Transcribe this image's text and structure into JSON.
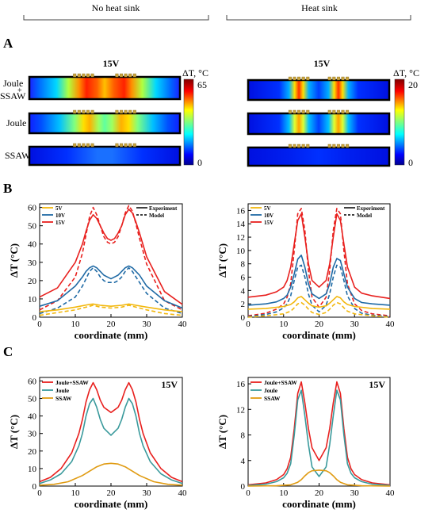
{
  "headers": {
    "left": "No heat sink",
    "right": "Heat sink"
  },
  "panel_labels": {
    "a": "A",
    "b": "B",
    "c": "C"
  },
  "heatmaps": {
    "left": {
      "title": "15V",
      "colorbar_label": "ΔT, °C",
      "max": "65",
      "min": "0"
    },
    "right": {
      "title": "15V",
      "colorbar_label": "ΔT, °C",
      "max": "20",
      "min": "0"
    },
    "row_labels": [
      "Joule\n+\nSSAW",
      "Joule",
      "SSAW"
    ]
  },
  "colors": {
    "v5": "#f2b70d",
    "v10": "#1f6aa5",
    "v15": "#e8201e",
    "joule_ssaw": "#e8201e",
    "joule": "#3a9a9c",
    "ssaw": "#e09b12"
  },
  "chart_data": [
    {
      "id": "b-left",
      "type": "line",
      "xlabel": "coordinate (mm)",
      "ylabel": "ΔT (°C)",
      "xlim": [
        0,
        40
      ],
      "ylim": [
        0,
        62
      ],
      "xticks": [
        0,
        10,
        20,
        30,
        40
      ],
      "yticks": [
        0,
        10,
        20,
        30,
        40,
        50,
        60
      ],
      "legend": [
        "5V",
        "10V",
        "15V"
      ],
      "style_legend": [
        "Experiment",
        "Model"
      ],
      "series": [
        {
          "name": "15V",
          "style": "solid",
          "color": "#e8201e",
          "x": [
            0,
            5,
            10,
            12,
            13,
            14,
            15,
            16,
            17,
            18,
            19,
            20,
            21,
            22,
            23,
            24,
            25,
            26,
            27,
            28,
            30,
            35,
            40
          ],
          "y": [
            11,
            16,
            30,
            40,
            47,
            53,
            56,
            54,
            50,
            46,
            43,
            42,
            43,
            46,
            50,
            56,
            59,
            57,
            52,
            46,
            33,
            14,
            7
          ]
        },
        {
          "name": "15V",
          "style": "dashed",
          "color": "#e8201e",
          "x": [
            0,
            5,
            10,
            12,
            13,
            14,
            15,
            16,
            17,
            18,
            19,
            20,
            21,
            22,
            23,
            24,
            25,
            26,
            27,
            28,
            30,
            35,
            40
          ],
          "y": [
            4,
            9,
            22,
            35,
            45,
            55,
            60,
            56,
            50,
            44,
            41,
            40,
            41,
            44,
            50,
            57,
            61,
            58,
            51,
            43,
            29,
            9,
            4
          ]
        },
        {
          "name": "10V",
          "style": "solid",
          "color": "#1f6aa5",
          "x": [
            0,
            5,
            10,
            12,
            13,
            14,
            15,
            16,
            17,
            18,
            19,
            20,
            21,
            22,
            23,
            24,
            25,
            26,
            27,
            28,
            30,
            35,
            40
          ],
          "y": [
            6,
            9,
            17,
            22,
            25,
            27,
            28,
            27,
            25,
            23,
            22,
            21,
            22,
            23,
            25,
            27,
            28,
            27,
            25,
            23,
            17,
            9,
            5
          ]
        },
        {
          "name": "10V",
          "style": "dashed",
          "color": "#1f6aa5",
          "x": [
            0,
            5,
            10,
            12,
            13,
            14,
            15,
            16,
            17,
            18,
            19,
            20,
            21,
            22,
            23,
            24,
            25,
            26,
            27,
            28,
            30,
            35,
            40
          ],
          "y": [
            2,
            5,
            11,
            17,
            21,
            25,
            27,
            25,
            22,
            20,
            19,
            19,
            19,
            20,
            22,
            25,
            27,
            25,
            22,
            19,
            13,
            5,
            2
          ]
        },
        {
          "name": "5V",
          "style": "solid",
          "color": "#f2b70d",
          "x": [
            0,
            5,
            10,
            14,
            15,
            17,
            20,
            23,
            25,
            27,
            30,
            35,
            40
          ],
          "y": [
            3,
            4,
            5.5,
            7,
            7.2,
            6.5,
            6,
            6.5,
            7.2,
            6.5,
            5.5,
            4,
            3
          ]
        },
        {
          "name": "5V",
          "style": "dashed",
          "color": "#f2b70d",
          "x": [
            0,
            5,
            10,
            14,
            15,
            17,
            20,
            23,
            25,
            27,
            30,
            35,
            40
          ],
          "y": [
            1,
            2.5,
            4,
            6,
            6.5,
            5.5,
            5,
            5.5,
            6.5,
            5.5,
            4,
            2,
            1
          ]
        }
      ]
    },
    {
      "id": "b-right",
      "type": "line",
      "xlabel": "coordinate (mm)",
      "ylabel": "ΔT (°C)",
      "xlim": [
        0,
        40
      ],
      "ylim": [
        0,
        17
      ],
      "xticks": [
        0,
        10,
        20,
        30,
        40
      ],
      "yticks": [
        0,
        2,
        4,
        6,
        8,
        10,
        12,
        14,
        16
      ],
      "legend": [
        "5V",
        "10V",
        "15V"
      ],
      "style_legend": [
        "Experiment",
        "Model"
      ],
      "series": [
        {
          "name": "15V",
          "style": "solid",
          "color": "#e8201e",
          "x": [
            0,
            5,
            8,
            10,
            11,
            12,
            13,
            14,
            15,
            16,
            17,
            18,
            20,
            22,
            23,
            24,
            25,
            26,
            27,
            28,
            30,
            32,
            35,
            40
          ],
          "y": [
            3,
            3.3,
            3.8,
            4.5,
            5.5,
            7.5,
            11,
            14.5,
            15.5,
            12,
            8,
            5.5,
            4.5,
            5.5,
            8,
            12,
            15.5,
            14.5,
            11,
            7.5,
            4.5,
            3.6,
            3.2,
            2.8
          ]
        },
        {
          "name": "15V",
          "style": "dashed",
          "color": "#e8201e",
          "x": [
            0,
            5,
            8,
            10,
            11,
            12,
            13,
            14,
            15,
            16,
            17,
            18,
            20,
            22,
            23,
            24,
            25,
            26,
            27,
            28,
            30,
            32,
            35,
            40
          ],
          "y": [
            0.2,
            0.6,
            1.2,
            2,
            3,
            5,
            10,
            15.5,
            16.3,
            13,
            7,
            3,
            1.5,
            3,
            7,
            13,
            16.3,
            15.5,
            10,
            5,
            2,
            1,
            0.5,
            0.2
          ]
        },
        {
          "name": "10V",
          "style": "solid",
          "color": "#1f6aa5",
          "x": [
            0,
            5,
            8,
            10,
            11,
            12,
            13,
            14,
            15,
            16,
            17,
            18,
            20,
            22,
            23,
            24,
            25,
            26,
            27,
            28,
            30,
            32,
            35,
            40
          ],
          "y": [
            1.8,
            2,
            2.3,
            2.8,
            3.3,
            4.5,
            6.5,
            8.7,
            9.3,
            7.5,
            5,
            3.5,
            2.8,
            3.5,
            5,
            7.5,
            8.8,
            8.5,
            6.5,
            4.5,
            2.8,
            2.2,
            2,
            1.8
          ]
        },
        {
          "name": "10V",
          "style": "dashed",
          "color": "#1f6aa5",
          "x": [
            0,
            5,
            8,
            10,
            11,
            12,
            13,
            14,
            15,
            16,
            17,
            18,
            20,
            22,
            23,
            24,
            25,
            26,
            27,
            28,
            30,
            32,
            35,
            40
          ],
          "y": [
            0.1,
            0.4,
            0.8,
            1.4,
            2,
            3.2,
            5.5,
            7.5,
            7.8,
            6,
            3.5,
            1.8,
            0.8,
            1.8,
            3.5,
            6,
            7.8,
            7.5,
            5.5,
            3.2,
            1.3,
            0.6,
            0.3,
            0.1
          ]
        },
        {
          "name": "5V",
          "style": "solid",
          "color": "#f2b70d",
          "x": [
            0,
            5,
            10,
            12,
            13,
            14,
            15,
            16,
            17,
            18,
            20,
            22,
            23,
            24,
            25,
            26,
            27,
            28,
            30,
            35,
            40
          ],
          "y": [
            1.2,
            1.3,
            1.6,
            1.9,
            2.3,
            2.9,
            3.1,
            2.6,
            2.1,
            1.7,
            1.5,
            1.7,
            2.1,
            2.6,
            3.1,
            2.9,
            2.3,
            1.9,
            1.6,
            1.3,
            1.2
          ]
        },
        {
          "name": "5V",
          "style": "dashed",
          "color": "#f2b70d",
          "x": [
            0,
            5,
            10,
            12,
            13,
            14,
            15,
            16,
            17,
            18,
            20,
            22,
            23,
            24,
            25,
            26,
            27,
            28,
            30,
            35,
            40
          ],
          "y": [
            0,
            0.2,
            0.5,
            0.9,
            1.4,
            2,
            2.2,
            1.8,
            1.2,
            0.7,
            0.4,
            0.7,
            1.2,
            1.8,
            2.2,
            2,
            1.4,
            0.9,
            0.5,
            0.2,
            0
          ]
        }
      ]
    },
    {
      "id": "c-left",
      "type": "line",
      "title": "15V",
      "xlabel": "coordinate (mm)",
      "ylabel": "ΔT (°C)",
      "xlim": [
        0,
        40
      ],
      "ylim": [
        0,
        62
      ],
      "xticks": [
        0,
        10,
        20,
        30,
        40
      ],
      "yticks": [
        0,
        10,
        20,
        30,
        40,
        50,
        60
      ],
      "series": [
        {
          "name": "Joule+SSAW",
          "style": "solid",
          "color": "#e8201e",
          "x": [
            0,
            3,
            6,
            9,
            11,
            12,
            13,
            14,
            15,
            16,
            17,
            18,
            20,
            22,
            23,
            24,
            25,
            26,
            27,
            28,
            29,
            31,
            34,
            37,
            40
          ],
          "y": [
            2.5,
            5,
            10,
            19,
            30,
            38,
            48,
            55,
            59,
            55,
            49,
            45,
            42,
            45,
            49,
            55,
            59,
            55,
            48,
            38,
            30,
            19,
            10,
            5,
            2.5
          ]
        },
        {
          "name": "Joule",
          "style": "solid",
          "color": "#3a9a9c",
          "x": [
            0,
            3,
            6,
            9,
            11,
            12,
            13,
            14,
            15,
            16,
            17,
            18,
            20,
            22,
            23,
            24,
            25,
            26,
            27,
            28,
            29,
            31,
            34,
            37,
            40
          ],
          "y": [
            1.5,
            3.5,
            7,
            14,
            23,
            30,
            40,
            47,
            50,
            45,
            38,
            33,
            29,
            33,
            38,
            45,
            50,
            47,
            40,
            30,
            23,
            14,
            7,
            3.5,
            1.5
          ]
        },
        {
          "name": "SSAW",
          "style": "solid",
          "color": "#e09b12",
          "x": [
            0,
            4,
            8,
            12,
            14,
            16,
            18,
            20,
            22,
            24,
            26,
            28,
            32,
            36,
            40
          ],
          "y": [
            0.5,
            1,
            2.5,
            6,
            8.5,
            11,
            12.6,
            13,
            12.6,
            11,
            8.5,
            6,
            2.5,
            1,
            0.5
          ]
        }
      ]
    },
    {
      "id": "c-right",
      "type": "line",
      "title": "15V",
      "xlabel": "coordinate (mm)",
      "ylabel": "ΔT (°C)",
      "xlim": [
        0,
        40
      ],
      "ylim": [
        0,
        17
      ],
      "xticks": [
        0,
        10,
        20,
        30,
        40
      ],
      "yticks": [
        0,
        4,
        8,
        12,
        16
      ],
      "series": [
        {
          "name": "Joule+SSAW",
          "style": "solid",
          "color": "#e8201e",
          "x": [
            0,
            5,
            8,
            10,
            11,
            12,
            13,
            14,
            15,
            16,
            17,
            18,
            20,
            22,
            23,
            24,
            25,
            26,
            27,
            28,
            29,
            30,
            32,
            35,
            40
          ],
          "y": [
            0.2,
            0.5,
            1,
            1.8,
            2.7,
            4.5,
            9,
            14.5,
            16.3,
            13,
            9,
            6,
            4,
            6,
            9,
            13,
            16.3,
            14.5,
            9,
            4.5,
            2.7,
            1.8,
            1,
            0.5,
            0.2
          ]
        },
        {
          "name": "Joule",
          "style": "solid",
          "color": "#3a9a9c",
          "x": [
            0,
            5,
            8,
            10,
            11,
            12,
            13,
            14,
            15,
            16,
            17,
            18,
            20,
            22,
            23,
            24,
            25,
            26,
            27,
            28,
            29,
            30,
            32,
            35,
            40
          ],
          "y": [
            0.1,
            0.3,
            0.7,
            1.3,
            2,
            3.5,
            8,
            13.5,
            15,
            11,
            6.5,
            3,
            1.5,
            3,
            6.5,
            11,
            15,
            13.5,
            8,
            3.5,
            2,
            1.3,
            0.7,
            0.3,
            0.1
          ]
        },
        {
          "name": "SSAW",
          "style": "solid",
          "color": "#e09b12",
          "x": [
            0,
            8,
            12,
            14,
            15,
            16,
            17,
            18,
            20,
            22,
            23,
            24,
            25,
            26,
            28,
            32,
            40
          ],
          "y": [
            0,
            0.05,
            0.2,
            0.6,
            1,
            1.6,
            2.1,
            2.4,
            2.5,
            2.4,
            2.1,
            1.6,
            1,
            0.6,
            0.2,
            0.05,
            0
          ]
        }
      ]
    }
  ]
}
